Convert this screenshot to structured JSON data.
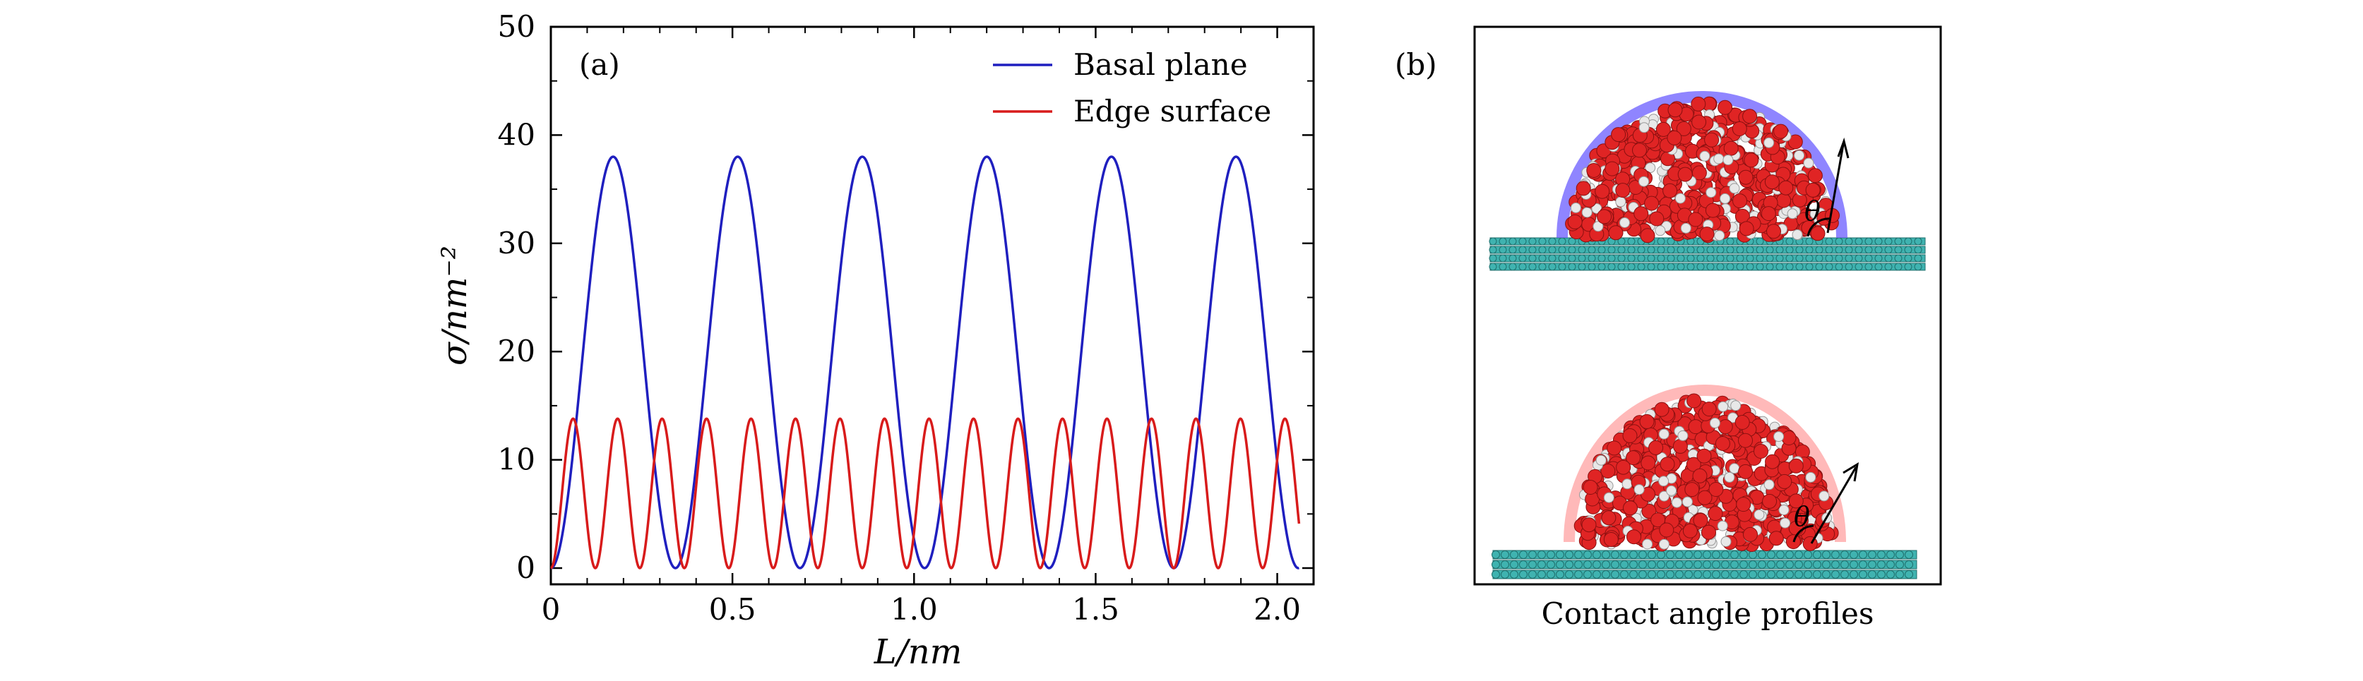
{
  "figure": {
    "panel_a_label": "(a)",
    "panel_b_label": "(b)",
    "panel_b_caption": "Contact angle profiles",
    "theta_symbol": "θ"
  },
  "colors": {
    "basal": "#1f1fbf",
    "edge": "#d81b1b",
    "substrate": "#3fb3b0",
    "water_oxygen": "#e02424",
    "water_hydrogen": "#e8e8e8",
    "halo_basal": "#6a5cff",
    "halo_edge": "#ff8a8a"
  },
  "chart_data": {
    "type": "line",
    "xlabel": "L/nm",
    "ylabel": "σ/nm⁻²",
    "xlim": [
      0,
      2.1
    ],
    "ylim": [
      -1.5,
      50
    ],
    "xticks": [
      0,
      0.5,
      1.0,
      1.5,
      2.0
    ],
    "xtick_labels": [
      "0",
      "0.5",
      "1.0",
      "1.5",
      "2.0"
    ],
    "yticks": [
      0,
      10,
      20,
      30,
      40,
      50
    ],
    "ytick_labels": [
      "0",
      "10",
      "20",
      "30",
      "40",
      "50"
    ],
    "grid": false,
    "legend_position": "top-right",
    "series": [
      {
        "name": "Basal plane",
        "color": "#1f1fbf",
        "period": 0.343,
        "amplitude": 38,
        "x_start": 0.0,
        "x_end": 2.06
      },
      {
        "name": "Edge surface",
        "color": "#d81b1b",
        "period": 0.1225,
        "amplitude": 13.8,
        "x_start": 0.0,
        "x_end": 2.06
      }
    ]
  }
}
